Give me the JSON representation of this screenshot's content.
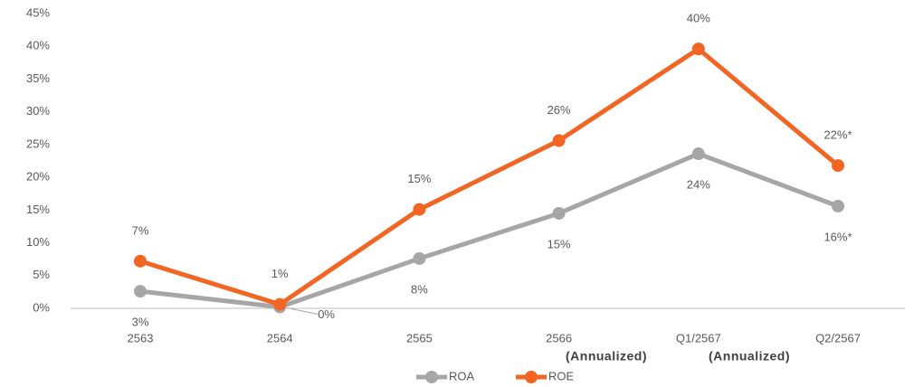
{
  "chart_data": {
    "type": "line",
    "categories": [
      "2563",
      "2564",
      "2565",
      "2566",
      "Q1/2567",
      "Q2/2567"
    ],
    "series": [
      {
        "name": "ROA",
        "color": "#a6a6a6",
        "values": [
          2.6,
          0.2,
          7.6,
          14.5,
          23.6,
          15.6
        ],
        "value_labels": [
          "3%",
          "0%",
          "8%",
          "15%",
          "24%",
          "16%*"
        ]
      },
      {
        "name": "ROE",
        "color": "#f26522",
        "values": [
          7.2,
          0.6,
          15.1,
          25.6,
          39.6,
          21.8
        ],
        "value_labels": [
          "7%",
          "1%",
          "15%",
          "26%",
          "40%",
          "22%*"
        ]
      }
    ],
    "ylim": [
      0,
      45
    ],
    "yticks": [
      {
        "value": 0,
        "label": "0%"
      },
      {
        "value": 5,
        "label": "5%"
      },
      {
        "value": 10,
        "label": "10%"
      },
      {
        "value": 15,
        "label": "15%"
      },
      {
        "value": 20,
        "label": "20%"
      },
      {
        "value": 25,
        "label": "25%"
      },
      {
        "value": 30,
        "label": "30%"
      },
      {
        "value": 35,
        "label": "35%"
      },
      {
        "value": 40,
        "label": "40%"
      },
      {
        "value": 45,
        "label": "45%"
      }
    ],
    "annotations": [
      "(Annualized)",
      "(Annualized)"
    ],
    "grid": false,
    "legend": "bottom"
  }
}
